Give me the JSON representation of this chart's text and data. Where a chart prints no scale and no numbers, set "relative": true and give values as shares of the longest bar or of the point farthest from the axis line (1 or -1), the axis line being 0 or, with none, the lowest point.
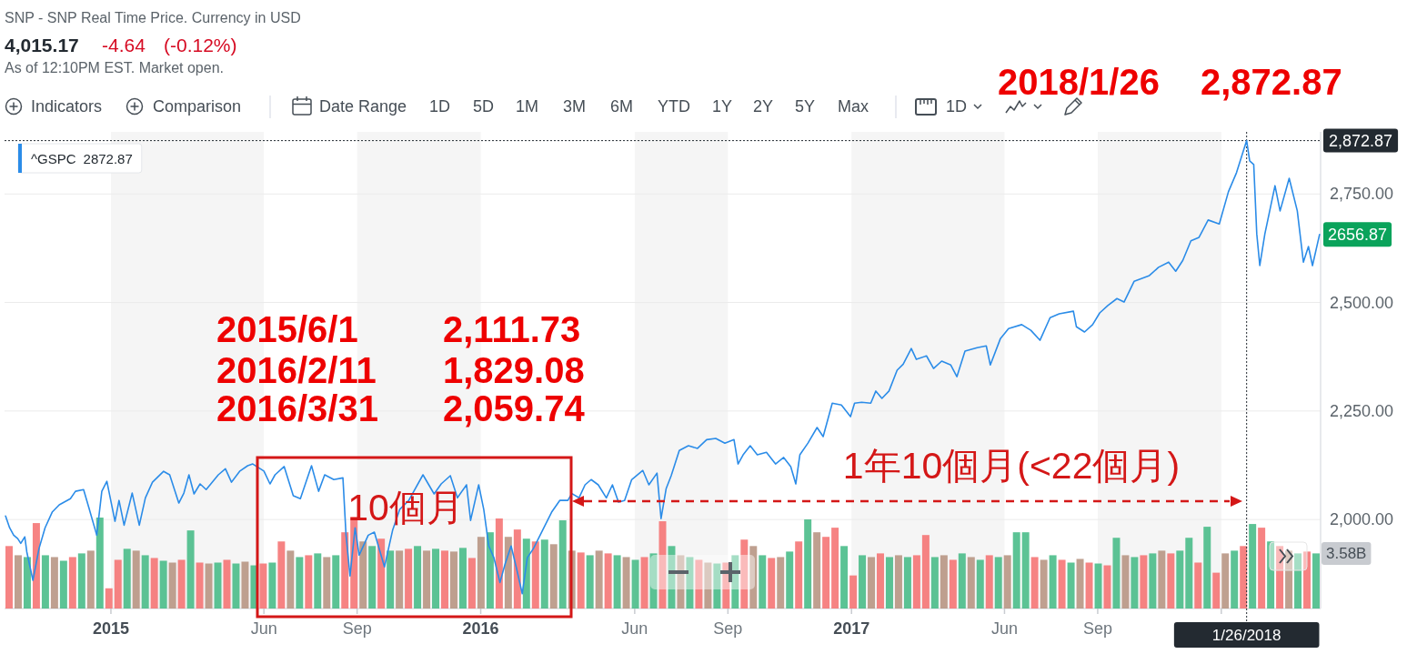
{
  "chart_data": [
    {
      "type": "line",
      "x": [
        "2014-09-19",
        "2014-09-23",
        "2014-09-27",
        "2014-10-01",
        "2014-10-04",
        "2014-10-08",
        "2014-10-10",
        "2014-10-16",
        "2014-10-22",
        "2014-10-28",
        "2014-11-04",
        "2014-11-11",
        "2014-11-22",
        "2014-11-27",
        "2014-12-05",
        "2014-12-10",
        "2014-12-18",
        "2014-12-23",
        "2014-12-28",
        "2015-01-05",
        "2015-01-09",
        "2015-01-14",
        "2015-01-22",
        "2015-01-29",
        "2015-02-04",
        "2015-02-11",
        "2015-02-22",
        "2015-02-28",
        "2015-03-09",
        "2015-03-14",
        "2015-03-19",
        "2015-03-24",
        "2015-03-30",
        "2015-04-05",
        "2015-04-17",
        "2015-04-24",
        "2015-04-30",
        "2015-05-08",
        "2015-05-16",
        "2015-05-21",
        "2015-06-01",
        "2015-06-07",
        "2015-06-12",
        "2015-06-21",
        "2015-06-30",
        "2015-07-07",
        "2015-07-18",
        "2015-07-25",
        "2015-07-31",
        "2015-08-09",
        "2015-08-18",
        "2015-08-21",
        "2015-08-25",
        "2015-08-30",
        "2015-09-03",
        "2015-09-12",
        "2015-09-18",
        "2015-09-28",
        "2015-10-06",
        "2015-10-13",
        "2015-10-22",
        "2015-11-05",
        "2015-11-16",
        "2015-11-23",
        "2015-12-02",
        "2015-12-09",
        "2015-12-18",
        "2015-12-22",
        "2015-12-30",
        "2016-01-04",
        "2016-01-09",
        "2016-01-14",
        "2016-01-20",
        "2016-01-25",
        "2016-01-31",
        "2016-02-05",
        "2016-02-11",
        "2016-02-16",
        "2016-02-22",
        "2016-03-02",
        "2016-03-11",
        "2016-03-19",
        "2016-03-27",
        "2016-03-31",
        "2016-04-07",
        "2016-04-13",
        "2016-04-19",
        "2016-04-26",
        "2016-05-04",
        "2016-05-10",
        "2016-05-16",
        "2016-05-22",
        "2016-05-29",
        "2016-06-09",
        "2016-06-15",
        "2016-06-23",
        "2016-06-27",
        "2016-07-02",
        "2016-07-07",
        "2016-07-15",
        "2016-07-24",
        "2016-08-02",
        "2016-08-11",
        "2016-08-20",
        "2016-08-29",
        "2016-09-07",
        "2016-09-11",
        "2016-09-16",
        "2016-09-23",
        "2016-09-30",
        "2016-10-09",
        "2016-10-18",
        "2016-10-26",
        "2016-11-02",
        "2016-11-07",
        "2016-11-11",
        "2016-11-19",
        "2016-11-28",
        "2016-12-04",
        "2016-12-13",
        "2016-12-22",
        "2016-12-31",
        "2017-01-04",
        "2017-01-11",
        "2017-01-20",
        "2017-01-25",
        "2017-01-31",
        "2017-02-07",
        "2017-02-15",
        "2017-02-21",
        "2017-03-01",
        "2017-03-06",
        "2017-03-16",
        "2017-03-23",
        "2017-03-31",
        "2017-04-09",
        "2017-04-15",
        "2017-04-23",
        "2017-05-05",
        "2017-05-14",
        "2017-05-18",
        "2017-05-28",
        "2017-06-05",
        "2017-06-18",
        "2017-06-27",
        "2017-07-06",
        "2017-07-16",
        "2017-07-25",
        "2017-08-08",
        "2017-08-11",
        "2017-08-19",
        "2017-08-27",
        "2017-09-03",
        "2017-09-11",
        "2017-09-20",
        "2017-09-27",
        "2017-10-07",
        "2017-10-22",
        "2017-10-31",
        "2017-11-10",
        "2017-11-17",
        "2017-11-24",
        "2017-12-02",
        "2017-12-10",
        "2017-12-19",
        "2017-12-30",
        "2018-01-08",
        "2018-01-16",
        "2018-01-26",
        "2018-01-29",
        "2018-02-02",
        "2018-02-05",
        "2018-02-08",
        "2018-02-13",
        "2018-02-23",
        "2018-02-28",
        "2018-03-09",
        "2018-03-17",
        "2018-03-23",
        "2018-03-28",
        "2018-04-01",
        "2018-04-08"
      ],
      "series": [
        {
          "name": "^GSPC",
          "color": "#2b8ce8",
          "values": [
            2008,
            1981,
            1964,
            1956,
            1945,
            1960,
            1925,
            1860,
            1933,
            1981,
            2017,
            2034,
            2048,
            2065,
            2069,
            2029,
            1964,
            2065,
            2088,
            1996,
            2044,
            1987,
            2061,
            1987,
            2050,
            2086,
            2111,
            2103,
            2038,
            2061,
            2103,
            2059,
            2082,
            2069,
            2103,
            2117,
            2086,
            2111,
            2124,
            2128,
            2111.73,
            2082,
            2103,
            2122,
            2055,
            2048,
            2124,
            2065,
            2103,
            2092,
            2096,
            1966,
            1870,
            1981,
            1918,
            1964,
            1971,
            1891,
            1975,
            2023,
            2044,
            2103,
            2059,
            2082,
            2101,
            2050,
            2080,
            1998,
            2080,
            2023,
            1939,
            1912,
            1855,
            1897,
            1939,
            1891,
            1829.08,
            1912,
            1933,
            1975,
            2017,
            2044,
            2044,
            2059.74,
            2050,
            2080,
            2092,
            2080,
            2050,
            2080,
            2040,
            2044,
            2092,
            2113,
            2080,
            2107,
            2002,
            2071,
            2101,
            2159,
            2170,
            2164,
            2184,
            2187,
            2176,
            2184,
            2128,
            2149,
            2170,
            2149,
            2155,
            2128,
            2143,
            2122,
            2082,
            2149,
            2176,
            2212,
            2191,
            2268,
            2264,
            2237,
            2268,
            2270,
            2268,
            2296,
            2279,
            2296,
            2344,
            2358,
            2394,
            2369,
            2377,
            2348,
            2365,
            2356,
            2329,
            2388,
            2396,
            2400,
            2356,
            2417,
            2440,
            2449,
            2436,
            2413,
            2465,
            2474,
            2480,
            2444,
            2432,
            2449,
            2476,
            2493,
            2509,
            2501,
            2549,
            2562,
            2581,
            2593,
            2572,
            2597,
            2642,
            2650,
            2690,
            2681,
            2755,
            2799,
            2872.87,
            2826,
            2818,
            2658,
            2585,
            2658,
            2769,
            2711,
            2786,
            2711,
            2593,
            2629,
            2585,
            2656.87
          ]
        }
      ],
      "xlim": [
        "2014-09-18",
        "2018-04-09"
      ],
      "xticks": [
        {
          "value": "2015-01-01",
          "label": "2015"
        },
        {
          "value": "2015-06-01",
          "label": "Jun"
        },
        {
          "value": "2015-09-01",
          "label": "Sep"
        },
        {
          "value": "2016-01-01",
          "label": "2016"
        },
        {
          "value": "2016-06-01",
          "label": "Jun"
        },
        {
          "value": "2016-09-01",
          "label": "Sep"
        },
        {
          "value": "2017-01-01",
          "label": "2017"
        },
        {
          "value": "2017-06-01",
          "label": "Jun"
        },
        {
          "value": "2017-09-01",
          "label": "Sep"
        },
        {
          "value": "2018-01-01",
          "label": null
        }
      ],
      "ylim": [
        1795,
        2893
      ],
      "yticks": [
        {
          "value": 2000,
          "label": "2,000.00"
        },
        {
          "value": 2250,
          "label": "2,250.00"
        },
        {
          "value": 2500,
          "label": "2,500.00"
        },
        {
          "value": 2750,
          "label": "2,750.00"
        }
      ],
      "grid": "y",
      "legend": "top left",
      "ref_lines": [
        {
          "axis": "y",
          "value": 2872.87,
          "label": "2,872.87",
          "color": "#232a31",
          "line_style": "dotted"
        },
        {
          "axis": "x",
          "value": "2018-01-26",
          "label": "1/26/2018",
          "color": "#232a31",
          "line_style": "dotted"
        }
      ],
      "bands": [
        {
          "axis": "x",
          "from": "2015-01-01",
          "to": "2015-06-01",
          "color": "#f5f5f5"
        },
        {
          "axis": "x",
          "from": "2015-09-01",
          "to": "2016-01-01",
          "color": "#f5f5f5"
        },
        {
          "axis": "x",
          "from": "2016-06-01",
          "to": "2016-09-01",
          "color": "#f5f5f5"
        },
        {
          "axis": "x",
          "from": "2017-01-01",
          "to": "2017-06-01",
          "color": "#f5f5f5"
        },
        {
          "axis": "x",
          "from": "2017-09-01",
          "to": "2018-01-01",
          "color": "#f5f5f5"
        }
      ],
      "annotations": [
        "SNP - SNP Real Time Price. Currency in USD",
        "4,015.17",
        "-4.64",
        "(-0.12%)",
        "As of 12:10PM EST. Market open.",
        "Indicators",
        "Comparison",
        "Date Range",
        "1D",
        "5D",
        "1M",
        "3M",
        "6M",
        "YTD",
        "1Y",
        "2Y",
        "5Y",
        "Max",
        "1D",
        "2872.87",
        "2018/1/26",
        "2,872.87",
        "2015/6/1",
        "2,111.73",
        "2016/2/11",
        "1,829.08",
        "2016/3/31",
        "2,059.74",
        {
          "text": "2656.87",
          "x": "2018-04-08",
          "y": 2656.87
        },
        "10個月",
        "1年10個月(<22個月)"
      ]
    },
    {
      "type": "bar",
      "relative": true,
      "categories": [
        null,
        null,
        null,
        null,
        null,
        null,
        null,
        null,
        null,
        null,
        null,
        null,
        null,
        null,
        null,
        null,
        null,
        null,
        null,
        null,
        null,
        null,
        null,
        null,
        null,
        null,
        null,
        null,
        null,
        null,
        null,
        null,
        null,
        null,
        null,
        null,
        null,
        null,
        null,
        null,
        null,
        null,
        null,
        null,
        null,
        null,
        null,
        null,
        null,
        null,
        null,
        null,
        null,
        null,
        null,
        null,
        null,
        null,
        null,
        null,
        null,
        null,
        null,
        null,
        null,
        null,
        null,
        null,
        null,
        null,
        null,
        null,
        null,
        null,
        null,
        null,
        null,
        null,
        null,
        null,
        null,
        null,
        null,
        null,
        null,
        null,
        null,
        null,
        null,
        null,
        null,
        null,
        null,
        null,
        null,
        null,
        null,
        null,
        null,
        null,
        null,
        null,
        null,
        null,
        null,
        null,
        null,
        null,
        null,
        null,
        null,
        null,
        null,
        null,
        null,
        null,
        null,
        null,
        null,
        null,
        null,
        null,
        null,
        null,
        null,
        null,
        null,
        null,
        null,
        null,
        null,
        null,
        null,
        null,
        null,
        null,
        null,
        null,
        null,
        null,
        null,
        null,
        null,
        null,
        null
      ],
      "values": [
        0.68,
        0.58,
        0.56,
        0.93,
        0.58,
        0.56,
        0.52,
        0.56,
        0.6,
        0.63,
        0.99,
        0.22,
        0.53,
        0.65,
        0.63,
        0.58,
        0.55,
        0.52,
        0.5,
        0.53,
        0.85,
        0.5,
        0.49,
        0.5,
        0.53,
        0.49,
        0.51,
        0.47,
        0.49,
        0.5,
        0.73,
        0.63,
        0.56,
        0.58,
        0.6,
        0.56,
        0.58,
        0.83,
        1,
        0.73,
        0.68,
        0.76,
        0.63,
        0.63,
        0.65,
        0.68,
        0.63,
        0.65,
        0.63,
        0.62,
        0.66,
        0.55,
        0.78,
        0.83,
        0.98,
        0.78,
        0.86,
        0.76,
        0.73,
        0.75,
        0.7,
        0.96,
        0.63,
        0.61,
        0.58,
        0.63,
        0.6,
        0.58,
        0.56,
        0.53,
        0.56,
        0.6,
        0.95,
        0.68,
        0.58,
        0.56,
        0.53,
        0.5,
        0.49,
        0.5,
        0.58,
        0.75,
        0.68,
        0.58,
        0.55,
        0.56,
        0.62,
        0.73,
        0.97,
        0.83,
        0.78,
        0.88,
        0.68,
        0.36,
        0.58,
        0.56,
        0.6,
        0.56,
        0.58,
        0.56,
        0.58,
        0.8,
        0.56,
        0.58,
        0.53,
        0.6,
        0.56,
        0.53,
        0.58,
        0.56,
        0.58,
        0.83,
        0.83,
        0.56,
        0.53,
        0.58,
        0.53,
        0.5,
        0.54,
        0.5,
        0.49,
        0.47,
        0.77,
        0.58,
        0.56,
        0.58,
        0.6,
        0.63,
        0.6,
        0.63,
        0.77,
        0.5,
        0.89,
        0.39,
        0.6,
        0.63,
        0.68,
        0.92,
        0.88,
        0.73,
        0.68,
        0.63,
        0.6,
        0.62,
        0.6
      ],
      "colors": [
        "#f46d6d",
        "#b48f7c",
        "#3fb883",
        "#f46d6d",
        "#3fb883",
        "#b48f7c",
        "#3fb883",
        "#f46d6d",
        "#3fb883",
        "#b48f7c",
        "#3fb883",
        "#f46d6d",
        "#f46d6d",
        "#3fb883",
        "#b48f7c",
        "#3fb883",
        "#f46d6d",
        "#3fb883",
        "#b48f7c",
        "#f46d6d",
        "#3fb883",
        "#f46d6d",
        "#b48f7c",
        "#3fb883",
        "#f46d6d",
        "#3fb883",
        "#b48f7c",
        "#3fb883",
        "#f46d6d",
        "#3fb883",
        "#f46d6d",
        "#b48f7c",
        "#3fb883",
        "#f46d6d",
        "#3fb883",
        "#b48f7c",
        "#3fb883",
        "#f46d6d",
        "#f46d6d",
        "#b48f7c",
        "#3fb883",
        "#f46d6d",
        "#3fb883",
        "#b48f7c",
        "#f46d6d",
        "#3fb883",
        "#b48f7c",
        "#3fb883",
        "#f46d6d",
        "#b48f7c",
        "#3fb883",
        "#f46d6d",
        "#b48f7c",
        "#3fb883",
        "#f46d6d",
        "#b48f7c",
        "#f46d6d",
        "#3fb883",
        "#f46d6d",
        "#3fb883",
        "#b48f7c",
        "#3fb883",
        "#b48f7c",
        "#f46d6d",
        "#3fb883",
        "#b48f7c",
        "#f46d6d",
        "#3fb883",
        "#b48f7c",
        "#3fb883",
        "#f46d6d",
        "#3fb883",
        "#f46d6d",
        "#3fb883",
        "#b48f7c",
        "#3fb883",
        "#f46d6d",
        "#b48f7c",
        "#3fb883",
        "#f46d6d",
        "#3fb883",
        "#f46d6d",
        "#b48f7c",
        "#3fb883",
        "#f46d6d",
        "#b48f7c",
        "#3fb883",
        "#f46d6d",
        "#3fb883",
        "#b48f7c",
        "#f46d6d",
        "#f46d6d",
        "#3fb883",
        "#f46d6d",
        "#3fb883",
        "#b48f7c",
        "#f46d6d",
        "#3fb883",
        "#b48f7c",
        "#3fb883",
        "#f46d6d",
        "#f46d6d",
        "#3fb883",
        "#b48f7c",
        "#f46d6d",
        "#3fb883",
        "#b48f7c",
        "#3fb883",
        "#f46d6d",
        "#3fb883",
        "#b48f7c",
        "#3fb883",
        "#3fb883",
        "#f46d6d",
        "#b48f7c",
        "#3fb883",
        "#f46d6d",
        "#3fb883",
        "#b48f7c",
        "#f46d6d",
        "#3fb883",
        "#f46d6d",
        "#3fb883",
        "#b48f7c",
        "#3fb883",
        "#f46d6d",
        "#3fb883",
        "#b48f7c",
        "#f46d6d",
        "#3fb883",
        "#3fb883",
        "#f46d6d",
        "#3fb883",
        "#f46d6d",
        "#b48f7c",
        "#3fb883",
        "#f46d6d",
        "#3fb883",
        "#f46d6d",
        "#3fb883",
        "#f46d6d",
        "#b48f7c",
        "#3fb883",
        "#f46d6d",
        "#3fb883"
      ],
      "annotations": [
        "3.58B"
      ]
    }
  ]
}
